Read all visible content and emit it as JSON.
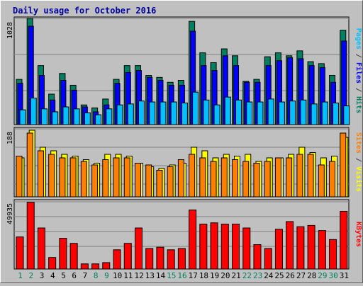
{
  "chart_data": [
    {
      "type": "bar",
      "title": "Daily usage for October 2016",
      "ylabel_parts": [
        {
          "text": "Pages",
          "color": "#00c0ff"
        },
        {
          "text": " / ",
          "color": "#404040"
        },
        {
          "text": "Files",
          "color": "#0000ff"
        },
        {
          "text": " / ",
          "color": "#404040"
        },
        {
          "text": "Hits",
          "color": "#008060"
        }
      ],
      "y_tick_label": "1028",
      "ylim": [
        0,
        1080
      ],
      "categories": [
        "1",
        "2",
        "3",
        "4",
        "5",
        "6",
        "7",
        "8",
        "9",
        "10",
        "11",
        "12",
        "13",
        "14",
        "15",
        "16",
        "17",
        "18",
        "19",
        "20",
        "21",
        "22",
        "23",
        "24",
        "25",
        "26",
        "27",
        "28",
        "29",
        "30",
        "31"
      ],
      "weekend_days": [
        "1",
        "2",
        "8",
        "9",
        "15",
        "16",
        "22",
        "23",
        "29",
        "30"
      ],
      "series": [
        {
          "name": "Hits",
          "color": "#008060",
          "values": [
            460,
            1080,
            600,
            310,
            520,
            400,
            200,
            170,
            260,
            460,
            600,
            600,
            500,
            480,
            430,
            450,
            1050,
            730,
            630,
            770,
            700,
            440,
            460,
            690,
            730,
            700,
            750,
            640,
            620,
            500,
            960
          ]
        },
        {
          "name": "Files",
          "color": "#0000ff",
          "values": [
            420,
            1000,
            500,
            250,
            450,
            350,
            180,
            130,
            200,
            420,
            530,
            550,
            480,
            450,
            400,
            400,
            950,
            600,
            550,
            700,
            600,
            430,
            430,
            600,
            650,
            680,
            670,
            600,
            580,
            430,
            850
          ]
        },
        {
          "name": "Pages",
          "color": "#00c0ff",
          "values": [
            150,
            270,
            160,
            130,
            180,
            160,
            120,
            100,
            160,
            200,
            210,
            240,
            230,
            230,
            230,
            220,
            330,
            250,
            200,
            280,
            250,
            230,
            230,
            260,
            230,
            240,
            250,
            210,
            230,
            220,
            190
          ]
        }
      ]
    },
    {
      "type": "bar",
      "ylabel_parts": [
        {
          "text": "Sites",
          "color": "#ff8000"
        },
        {
          "text": " / ",
          "color": "#404040"
        },
        {
          "text": "Visits",
          "color": "#ffff00"
        }
      ],
      "y_tick_label": "188",
      "ylim": [
        0,
        192
      ],
      "categories": [
        "1",
        "2",
        "3",
        "4",
        "5",
        "6",
        "7",
        "8",
        "9",
        "10",
        "11",
        "12",
        "13",
        "14",
        "15",
        "16",
        "17",
        "18",
        "19",
        "20",
        "21",
        "22",
        "23",
        "24",
        "25",
        "26",
        "27",
        "28",
        "29",
        "30",
        "31"
      ],
      "series": [
        {
          "name": "Visits",
          "color": "#ffff00",
          "values": [
            110,
            188,
            140,
            130,
            120,
            115,
            105,
            95,
            120,
            120,
            115,
            95,
            85,
            80,
            90,
            95,
            140,
            130,
            110,
            120,
            115,
            120,
            100,
            110,
            110,
            120,
            140,
            125,
            110,
            115,
            168
          ]
        },
        {
          "name": "Sites",
          "color": "#ff8000",
          "values": [
            115,
            180,
            130,
            120,
            110,
            110,
            100,
            90,
            105,
            110,
            110,
            95,
            90,
            75,
            85,
            105,
            120,
            110,
            100,
            110,
            105,
            100,
            95,
            100,
            110,
            110,
            120,
            120,
            90,
            100,
            180
          ]
        }
      ]
    },
    {
      "type": "bar",
      "ylabel_parts": [
        {
          "text": "KBytes",
          "color": "#ff0000"
        }
      ],
      "y_tick_label": "49935",
      "ylim": [
        0,
        53000
      ],
      "categories": [
        "1",
        "2",
        "3",
        "4",
        "5",
        "6",
        "7",
        "8",
        "9",
        "10",
        "11",
        "12",
        "13",
        "14",
        "15",
        "16",
        "17",
        "18",
        "19",
        "20",
        "21",
        "22",
        "23",
        "24",
        "25",
        "26",
        "27",
        "28",
        "29",
        "30",
        "31"
      ],
      "series": [
        {
          "name": "KBytes",
          "color": "#ff0000",
          "values": [
            25000,
            52000,
            32000,
            9000,
            24000,
            20000,
            4000,
            4000,
            5000,
            15000,
            20000,
            32000,
            16000,
            17000,
            15000,
            16000,
            46000,
            35000,
            36000,
            35000,
            35000,
            32000,
            19000,
            16000,
            31000,
            37000,
            33000,
            34000,
            30000,
            23000,
            45000
          ]
        }
      ]
    }
  ]
}
